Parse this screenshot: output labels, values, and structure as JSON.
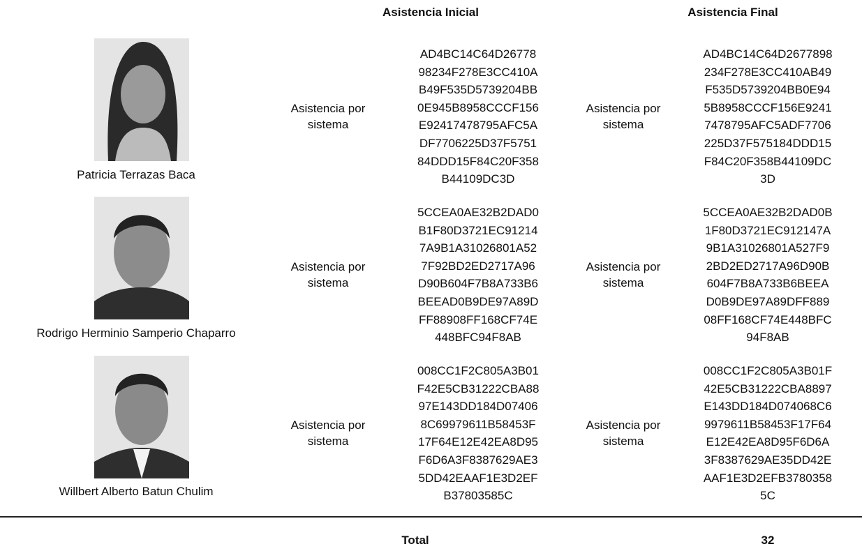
{
  "header": {
    "initial": "Asistencia Inicial",
    "final": "Asistencia Final"
  },
  "rows": [
    {
      "name": "Patricia Terrazas Baca",
      "initial_method": "Asistencia por sistema",
      "initial_hash": [
        "AD4BC14C64D26778",
        "98234F278E3CC410A",
        "B49F535D5739204BB",
        "0E945B8958CCCF156",
        "E92417478795AFC5A",
        "DF7706225D37F5751",
        "84DDD15F84C20F358",
        "B44109DC3D"
      ],
      "final_method": "Asistencia por sistema",
      "final_hash": [
        "AD4BC14C64D2677898",
        "234F278E3CC410AB49",
        "F535D5739204BB0E94",
        "5B8958CCCF156E9241",
        "7478795AFC5ADF7706",
        "225D37F575184DDD15",
        "F84C20F358B44109DC",
        "3D"
      ]
    },
    {
      "name": "Rodrigo Herminio Samperio Chaparro",
      "initial_method": "Asistencia por sistema",
      "initial_hash": [
        "5CCEA0AE32B2DAD0",
        "B1F80D3721EC91214",
        "7A9B1A31026801A52",
        "7F92BD2ED2717A96",
        "D90B604F7B8A733B6",
        "BEEAD0B9DE97A89D",
        "FF88908FF168CF74E",
        "448BFC94F8AB"
      ],
      "final_method": "Asistencia por sistema",
      "final_hash": [
        "5CCEA0AE32B2DAD0B",
        "1F80D3721EC912147A",
        "9B1A31026801A527F9",
        "2BD2ED2717A96D90B",
        "604F7B8A733B6BEEA",
        "D0B9DE97A89DFF889",
        "08FF168CF74E448BFC",
        "94F8AB"
      ]
    },
    {
      "name": "Willbert Alberto Batun Chulim",
      "initial_method": "Asistencia por sistema",
      "initial_hash": [
        "008CC1F2C805A3B01",
        "F42E5CB31222CBA88",
        "97E143DD184D07406",
        "8C69979611B58453F",
        "17F64E12E42EA8D95",
        "F6D6A3F8387629AE3",
        "5DD42EAAF1E3D2EF",
        "B37803585C"
      ],
      "final_method": "Asistencia por sistema",
      "final_hash": [
        "008CC1F2C805A3B01F",
        "42E5CB31222CBA8897",
        "E143DD184D074068C6",
        "9979611B58453F17F64",
        "E12E42EA8D95F6D6A",
        "3F8387629AE35DD42E",
        "AAF1E3D2EFB3780358",
        "5C"
      ]
    }
  ],
  "footer": {
    "label": "Total",
    "value": "32"
  }
}
